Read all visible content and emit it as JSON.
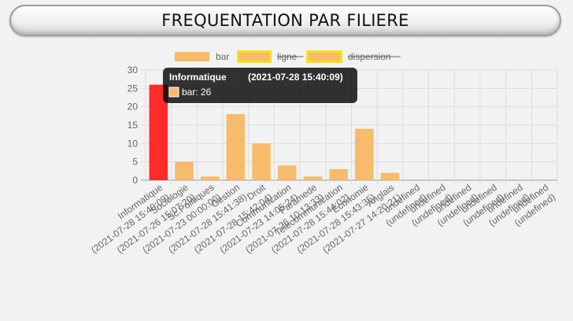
{
  "title": "FREQUENTATION PAR FILIERE",
  "legend": [
    {
      "label": "bar",
      "color": "#f7bb6c",
      "hidden": false
    },
    {
      "label": "ligne",
      "color": "#f7bb6c",
      "hidden": true
    },
    {
      "label": "dispersion",
      "color": "#f7bb6c",
      "hidden": true
    }
  ],
  "colors": {
    "bar": "#f7bb6c",
    "highlight": "#ff2a2a",
    "legend_border": "#f7e017",
    "grid": "#dcdcdc",
    "tooltip_bg": "#000000"
  },
  "tooltip": {
    "title_name": "Informatique",
    "title_date": "(2021-07-28 15:40:09)",
    "body": "bar: 26"
  },
  "chart_data": {
    "type": "bar",
    "highlighted_index": 0,
    "categories": [
      [
        "Informatique",
        "(2021-07-28 15:40:09)"
      ],
      [
        "Sociologie",
        "(2021-07-26 15:07:20)"
      ],
      [
        "Sc.Politiques",
        "(2021-07-23 00:00:00)"
      ],
      [
        "Gestion",
        "(2021-07-28 15:41:38)"
      ],
      [
        "Droit",
        "(2021-07-28 15:42:04)"
      ],
      [
        "Communication",
        "(2021-07-23 14:05:24)"
      ],
      [
        "Paramede",
        "(2021-07-26 10:13:33)"
      ],
      [
        "Telecommunication",
        "(2021-07-28 15:44:02)"
      ],
      [
        "Economie",
        "(2021-07-28 15:43:35)"
      ],
      [
        "Anglais",
        "(2021-07-27 14:20:21)"
      ],
      [
        "undefined",
        "(undefined)"
      ],
      [
        "undefined",
        "(undefined)"
      ],
      [
        "undefined",
        "(undefined)"
      ],
      [
        "undefined",
        "(undefined)"
      ],
      [
        "undefined",
        "(undefined)"
      ],
      [
        "undefined",
        "(undefined)"
      ]
    ],
    "series": [
      {
        "name": "bar",
        "values": [
          26,
          5,
          1,
          18,
          10,
          4,
          1,
          3,
          14,
          2,
          null,
          null,
          null,
          null,
          null,
          null
        ]
      }
    ],
    "ylim": [
      0,
      30
    ],
    "yticks": [
      0,
      5,
      10,
      15,
      20,
      25,
      30
    ],
    "grid": true,
    "legend_position": "top"
  }
}
